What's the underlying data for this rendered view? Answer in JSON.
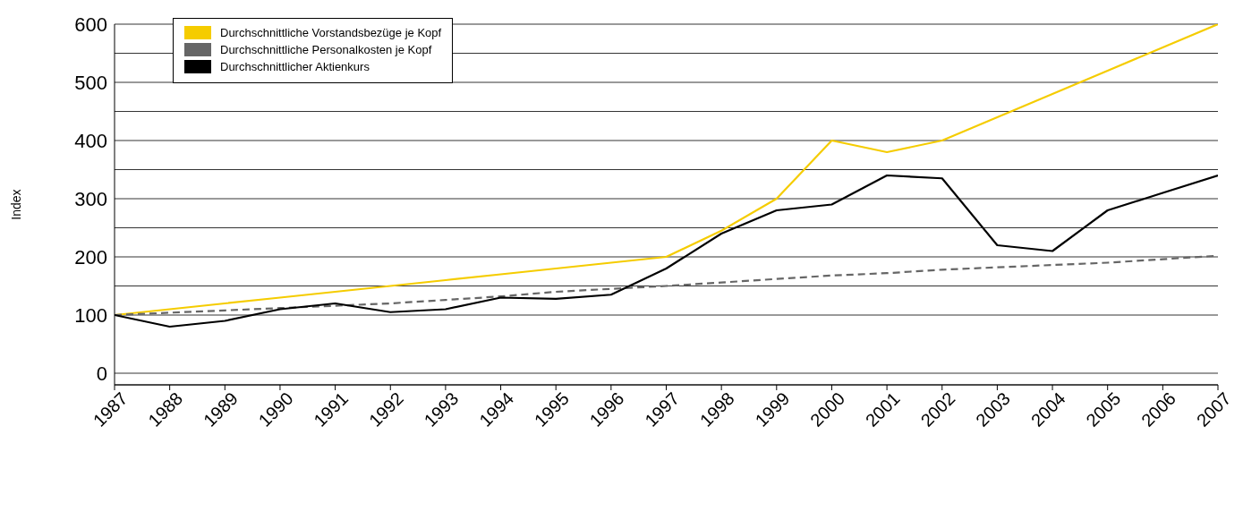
{
  "chart_data": {
    "type": "line",
    "ylabel": "Index",
    "x": [
      1987,
      1988,
      1989,
      1990,
      1991,
      1992,
      1993,
      1994,
      1995,
      1996,
      1997,
      1998,
      1999,
      2000,
      2001,
      2002,
      2003,
      2004,
      2005,
      2006,
      2007
    ],
    "series": [
      {
        "name": "Durchschnittliche Vorstandsbezüge je Kopf",
        "color": "#f5cc00",
        "line_style": "solid",
        "values": [
          100,
          110,
          120,
          130,
          140,
          150,
          160,
          170,
          180,
          190,
          200,
          245,
          300,
          400,
          380,
          400,
          440,
          480,
          520,
          560,
          600
        ]
      },
      {
        "name": "Durchschnittliche Personalkosten je Kopf",
        "color": "#666666",
        "line_style": "dashed",
        "values": [
          100,
          104,
          108,
          112,
          116,
          120,
          126,
          132,
          140,
          145,
          150,
          156,
          162,
          168,
          172,
          178,
          182,
          186,
          190,
          196,
          202
        ]
      },
      {
        "name": "Durchschnittlicher Aktienkurs",
        "color": "#000000",
        "line_style": "solid",
        "values": [
          100,
          80,
          90,
          110,
          120,
          105,
          110,
          130,
          128,
          135,
          180,
          240,
          280,
          290,
          340,
          335,
          220,
          210,
          280,
          310,
          340
        ]
      }
    ],
    "xlim": [
      1987,
      2007
    ],
    "xticks": [
      1987,
      1988,
      1989,
      1990,
      1991,
      1992,
      1993,
      1994,
      1995,
      1996,
      1997,
      1998,
      1999,
      2000,
      2001,
      2002,
      2003,
      2004,
      2005,
      2006,
      2007
    ],
    "ylim": [
      -20,
      600
    ],
    "yticks": [
      0,
      100,
      {
        "value": 150,
        "label": null
      },
      200,
      {
        "value": 250,
        "label": null
      },
      300,
      {
        "value": 350,
        "label": null
      },
      400,
      {
        "value": 450,
        "label": null
      },
      500,
      {
        "value": 550,
        "label": null
      },
      600
    ],
    "grid": "y",
    "legend": "top left",
    "marker": "none"
  }
}
